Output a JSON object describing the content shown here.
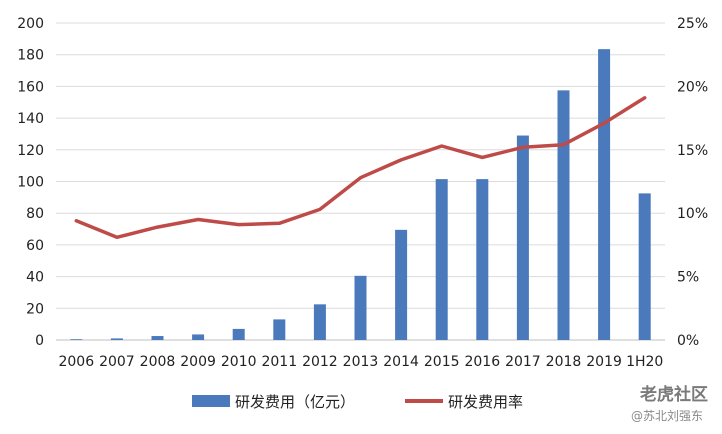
{
  "chart_data": {
    "type": "bar",
    "categories": [
      "2006",
      "2007",
      "2008",
      "2009",
      "2010",
      "2011",
      "2012",
      "2013",
      "2014",
      "2015",
      "2016",
      "2017",
      "2018",
      "2019",
      "1H20"
    ],
    "series": [
      {
        "name": "研发费用（亿元）",
        "type": "bar",
        "axis": "left",
        "color": "#4a79bc",
        "values": [
          0.5,
          1,
          2.5,
          3.5,
          7,
          13,
          22.5,
          40.5,
          69.5,
          101.5,
          101.5,
          129,
          157.5,
          183.5,
          92.5
        ]
      },
      {
        "name": "研发费用率",
        "type": "line",
        "axis": "right",
        "color": "#be4b48",
        "values": [
          9.4,
          8.1,
          8.9,
          9.5,
          9.1,
          9.2,
          10.3,
          12.8,
          14.2,
          15.3,
          14.4,
          15.2,
          15.4,
          17.1,
          19.1
        ]
      }
    ],
    "y_left": {
      "range": [
        0,
        200
      ],
      "ticks": [
        "0",
        "20",
        "40",
        "60",
        "80",
        "100",
        "120",
        "140",
        "160",
        "180",
        "200"
      ]
    },
    "y_right": {
      "range": [
        0,
        25
      ],
      "ticks": [
        "0%",
        "5%",
        "10%",
        "15%",
        "20%",
        "25%"
      ]
    },
    "grid": true,
    "legend_position": "bottom"
  },
  "watermark": {
    "brand": "老虎社区",
    "author": "@苏北刘强东"
  }
}
